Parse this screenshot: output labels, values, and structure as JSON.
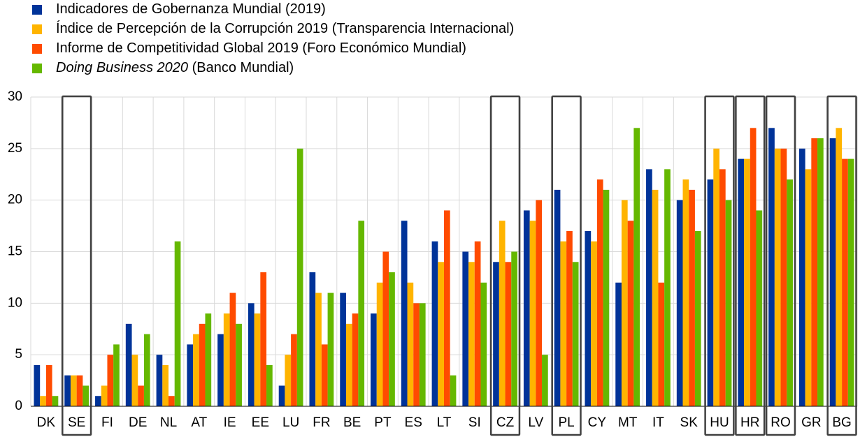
{
  "chart_data": {
    "type": "bar",
    "title": "",
    "xlabel": "",
    "ylabel": "",
    "ylim": [
      0,
      30
    ],
    "yticks": [
      0,
      5,
      10,
      15,
      20,
      25,
      30
    ],
    "grid": true,
    "legend_position": "top-left",
    "categories": [
      "DK",
      "SE",
      "FI",
      "DE",
      "NL",
      "AT",
      "IE",
      "EE",
      "LU",
      "FR",
      "BE",
      "PT",
      "ES",
      "LT",
      "SI",
      "CZ",
      "LV",
      "PL",
      "CY",
      "MT",
      "IT",
      "SK",
      "HU",
      "HR",
      "RO",
      "GR",
      "BG"
    ],
    "highlighted_categories": [
      "SE",
      "CZ",
      "PL",
      "HU",
      "HR",
      "RO",
      "BG"
    ],
    "series": [
      {
        "name": "Indicadores de Gobernanza Mundial (2019)",
        "legend_parts": [
          {
            "text": "Indicadores de Gobernanza Mundial (2019)",
            "italic": false
          }
        ],
        "color": "#003399",
        "values": [
          4,
          3,
          1,
          8,
          5,
          6,
          7,
          10,
          2,
          13,
          11,
          9,
          18,
          16,
          15,
          14,
          19,
          21,
          17,
          12,
          23,
          20,
          22,
          24,
          27,
          25,
          26
        ]
      },
      {
        "name": "Índice de Percepción de la Corrupción 2019 (Transparencia Internacional)",
        "legend_parts": [
          {
            "text": "Índice de Percepción de la Corrupción 2019 (Transparencia Internacional)",
            "italic": false
          }
        ],
        "color": "#ffb400",
        "values": [
          1,
          3,
          2,
          5,
          4,
          7,
          9,
          9,
          5,
          11,
          8,
          12,
          12,
          14,
          14,
          18,
          18,
          16,
          16,
          20,
          21,
          22,
          25,
          24,
          25,
          23,
          27
        ]
      },
      {
        "name": "Informe de Competitividad Global 2019 (Foro Económico Mundial)",
        "legend_parts": [
          {
            "text": "Informe de Competitividad Global 2019 (Foro Económico Mundial)",
            "italic": false
          }
        ],
        "color": "#ff4b00",
        "values": [
          4,
          3,
          5,
          2,
          1,
          8,
          11,
          13,
          7,
          6,
          9,
          15,
          10,
          19,
          16,
          14,
          20,
          17,
          22,
          18,
          12,
          21,
          23,
          27,
          25,
          26,
          24
        ]
      },
      {
        "name": "Doing Business 2020 (Banco Mundial)",
        "legend_parts": [
          {
            "text": "Doing Business 2020",
            "italic": true
          },
          {
            "text": " (Banco Mundial)",
            "italic": false
          }
        ],
        "color": "#65b800",
        "values": [
          1,
          2,
          6,
          7,
          16,
          9,
          8,
          4,
          25,
          11,
          18,
          13,
          10,
          3,
          12,
          15,
          5,
          14,
          21,
          27,
          23,
          17,
          20,
          19,
          22,
          26,
          24
        ]
      }
    ]
  }
}
